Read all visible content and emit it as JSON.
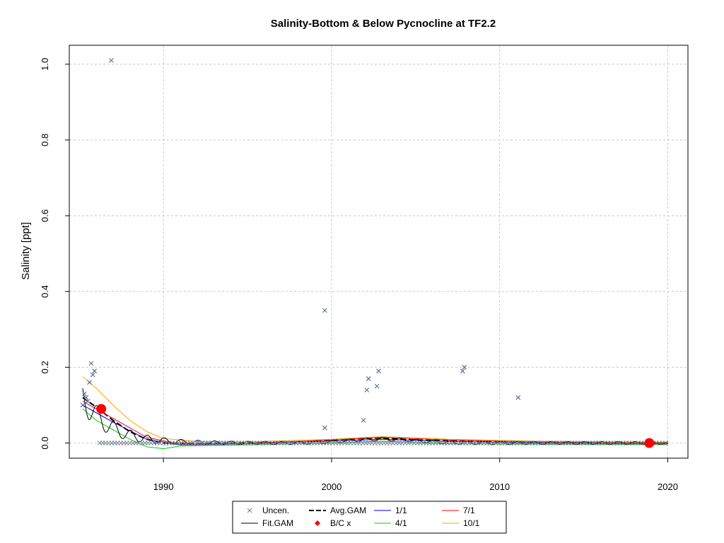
{
  "chart_data": {
    "type": "scatter",
    "title": "Salinity-Bottom & Below Pycnocline at TF2.2",
    "xlabel": "",
    "ylabel": "Salinity [ppt]",
    "xlim": [
      1984.4,
      2021.2
    ],
    "ylim": [
      -0.04,
      1.05
    ],
    "x_ticks": [
      1990,
      2000,
      2010,
      2020
    ],
    "y_ticks": [
      0.0,
      0.2,
      0.4,
      0.6,
      0.8,
      1.0
    ],
    "x_tick_labels": [
      "1990",
      "2000",
      "2010",
      "2020"
    ],
    "y_tick_labels": [
      "0.0",
      "0.2",
      "0.4",
      "0.6",
      "0.8",
      "1.0"
    ],
    "grid": true,
    "colors": {
      "uncen": "#4a5a8a",
      "uncen_zero": "#708090",
      "fit_gam": "#000000",
      "avg_gam": "#000000",
      "bc": "#ff0000",
      "s1_1": "#0000cd",
      "s4_1": "#00cc00",
      "s7_1": "#ff0000",
      "s10_1": "#ffa500"
    },
    "uncensored_points": [
      {
        "x": 1985.2,
        "y": 0.1
      },
      {
        "x": 1985.3,
        "y": 0.13
      },
      {
        "x": 1985.4,
        "y": 0.12
      },
      {
        "x": 1985.5,
        "y": 0.11
      },
      {
        "x": 1985.6,
        "y": 0.16
      },
      {
        "x": 1985.7,
        "y": 0.21
      },
      {
        "x": 1985.8,
        "y": 0.18
      },
      {
        "x": 1985.9,
        "y": 0.19
      },
      {
        "x": 1986.9,
        "y": 1.01
      },
      {
        "x": 1999.6,
        "y": 0.35
      },
      {
        "x": 1999.6,
        "y": 0.04
      },
      {
        "x": 2001.9,
        "y": 0.06
      },
      {
        "x": 2002.1,
        "y": 0.14
      },
      {
        "x": 2002.2,
        "y": 0.17
      },
      {
        "x": 2002.7,
        "y": 0.15
      },
      {
        "x": 2002.8,
        "y": 0.19
      },
      {
        "x": 2007.8,
        "y": 0.19
      },
      {
        "x": 2007.9,
        "y": 0.2
      },
      {
        "x": 2011.1,
        "y": 0.12
      }
    ],
    "zero_points_range": [
      1986.2,
      2020.0
    ],
    "bc_points": [
      {
        "x": 1986.3,
        "y": 0.09
      },
      {
        "x": 2018.9,
        "y": 0.0
      }
    ],
    "series": [
      {
        "name": "Avg.GAM",
        "x": [
          1985.2,
          1986.0,
          1987.0,
          1988.0,
          1989.0,
          1990.0,
          1992.0,
          1995.0,
          1998.0,
          2000.0,
          2002.0,
          2003.0,
          2005.0,
          2007.0,
          2009.0,
          2012.0,
          2015.0,
          2020.0
        ],
        "y": [
          0.12,
          0.095,
          0.06,
          0.03,
          0.01,
          0.0,
          -0.002,
          0.0,
          0.003,
          0.008,
          0.012,
          0.013,
          0.008,
          0.006,
          0.005,
          0.003,
          0.001,
          0.0
        ]
      },
      {
        "name": "1/1",
        "x": [
          1985.2,
          1987.0,
          1989.0,
          1991.0,
          1995.0,
          2000.0,
          2003.0,
          2007.0,
          2012.0,
          2020.0
        ],
        "y": [
          0.1,
          0.055,
          0.01,
          -0.005,
          -0.002,
          0.005,
          0.01,
          0.004,
          0.0,
          -0.002
        ]
      },
      {
        "name": "4/1",
        "x": [
          1985.2,
          1986.0,
          1987.0,
          1988.0,
          1989.0,
          1990.0,
          1991.0,
          1995.0,
          2000.0,
          2003.0,
          2007.0,
          2012.0,
          2020.0
        ],
        "y": [
          0.09,
          0.06,
          0.035,
          0.01,
          -0.01,
          -0.015,
          -0.008,
          -0.005,
          0.0,
          0.005,
          -0.002,
          -0.003,
          -0.004
        ]
      },
      {
        "name": "7/1",
        "x": [
          1985.2,
          1987.0,
          1989.0,
          1991.0,
          1995.0,
          2000.0,
          2003.0,
          2007.0,
          2012.0,
          2020.0
        ],
        "y": [
          0.11,
          0.065,
          0.015,
          -0.003,
          -0.001,
          0.008,
          0.015,
          0.008,
          0.003,
          0.0
        ]
      },
      {
        "name": "10/1",
        "x": [
          1985.2,
          1986.0,
          1987.0,
          1988.0,
          1989.0,
          1990.0,
          1992.0,
          1995.0,
          2000.0,
          2003.0,
          2007.0,
          2012.0,
          2020.0
        ],
        "y": [
          0.175,
          0.145,
          0.1,
          0.06,
          0.03,
          0.012,
          0.004,
          0.003,
          0.01,
          0.017,
          0.01,
          0.005,
          0.002
        ]
      }
    ],
    "legend": {
      "placement": "bottom",
      "entries": [
        {
          "label": "Uncen.",
          "symbol": "x"
        },
        {
          "label": "Avg.GAM",
          "symbol": "dashed-line"
        },
        {
          "label": "1/1",
          "symbol": "line"
        },
        {
          "label": "7/1",
          "symbol": "line"
        },
        {
          "label": "Fit.GAM",
          "symbol": "line"
        },
        {
          "label": "B/C x",
          "symbol": "diamond"
        },
        {
          "label": "4/1",
          "symbol": "line"
        },
        {
          "label": "10/1",
          "symbol": "line"
        }
      ]
    }
  }
}
